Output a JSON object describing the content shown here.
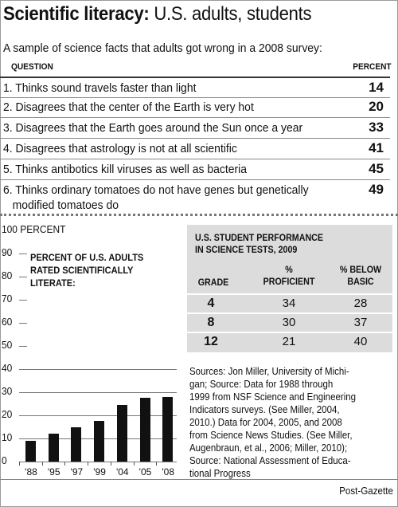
{
  "header": {
    "title_bold": "Scientific literacy:",
    "title_rest": " U.S. adults, students",
    "subtitle": "A sample of science facts that adults got wrong in a 2008 survey:"
  },
  "questions": {
    "col_question": "QUESTION",
    "col_percent": "PERCENT",
    "rows": [
      {
        "text": "1. Thinks sound travels faster than light",
        "pct": "14"
      },
      {
        "text": "2. Disagrees that the center of the Earth is very hot",
        "pct": "20"
      },
      {
        "text": "3. Disagrees that the Earth goes around the Sun once a year",
        "pct": "33"
      },
      {
        "text": "4. Disagrees that astrology is not at all scientific",
        "pct": "41"
      },
      {
        "text": "5. Thinks antibotics kill viruses as well as bacteria",
        "pct": "45"
      },
      {
        "text": "6. Thinks ordinary tomatoes do not have genes but genetically",
        "text2": "   modified tomatoes do",
        "pct": "49"
      }
    ]
  },
  "chart_data": {
    "type": "bar",
    "title": "PERCENT OF U.S. ADULTS RATED SCIENTIFICALLY LITERATE:",
    "ylabel": "PERCENT",
    "ylim": [
      0,
      100
    ],
    "yticks": [
      "0",
      "10",
      "20",
      "30",
      "40",
      "50",
      "60",
      "70",
      "80",
      "90",
      "100 PERCENT"
    ],
    "categories": [
      "'88",
      "'95",
      "'97",
      "'99",
      "'04",
      "'05",
      "'08"
    ],
    "values": [
      9,
      12,
      15,
      17.5,
      24.5,
      27.5,
      28
    ]
  },
  "student_table": {
    "title_line1": "U.S. STUDENT PERFORMANCE",
    "title_line2": "IN SCIENCE TESTS, 2009",
    "col_grade": "GRADE",
    "col_prof_1": "%",
    "col_prof_2": "PROFICIENT",
    "col_basic_1": "% BELOW",
    "col_basic_2": "BASIC",
    "rows": [
      {
        "grade": "4",
        "proficient": "34",
        "below_basic": "28"
      },
      {
        "grade": "8",
        "proficient": "30",
        "below_basic": "37"
      },
      {
        "grade": "12",
        "proficient": "21",
        "below_basic": "40"
      }
    ]
  },
  "sources": "Sources: Jon Miller, University of Michi-\ngan; Source: Data for 1988 through\n1999 from NSF Science and Engineering\nIndicators surveys. (See Miller, 2004,\n2010.) Data for 2004, 2005, and 2008\nfrom Science News Studies. (See Miller,\nAugenbraun, et al., 2006; Miller, 2010);\nSource: National Assessment of Educa-\ntional Progress",
  "credit": "Post-Gazette"
}
